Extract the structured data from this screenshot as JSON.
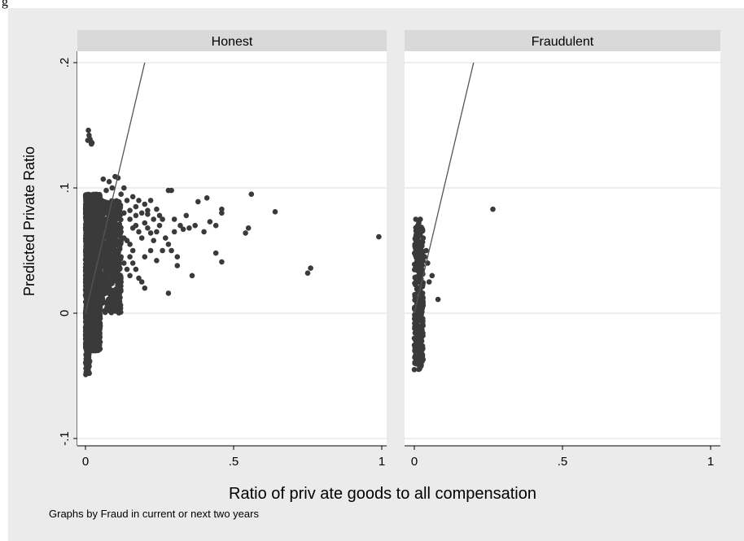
{
  "corner_text": "g",
  "chart_data": {
    "type": "scatter",
    "ylabel": "Predicted Private Ratio",
    "xlabel": "Ratio of priv ate goods to all compensation",
    "note": "Graphs by Fraud in current or next two years",
    "xlim": [
      0,
      1
    ],
    "ylim": [
      -0.1,
      0.2
    ],
    "x_ticks": [
      {
        "value": 0,
        "label": "0"
      },
      {
        "value": 0.5,
        "label": ".5"
      },
      {
        "value": 1,
        "label": "1"
      }
    ],
    "y_ticks": [
      {
        "value": -0.1,
        "label": "-.1"
      },
      {
        "value": 0,
        "label": "0"
      },
      {
        "value": 0.1,
        "label": ".1"
      },
      {
        "value": 0.2,
        "label": ".2"
      }
    ],
    "grid": true,
    "marker_color": "#3a3a3a",
    "reference_line": {
      "slope": 1,
      "intercept": 0
    },
    "panels": [
      {
        "title": "Honest",
        "points": [
          [
            0.01,
            0.146
          ],
          [
            0.012,
            0.142
          ],
          [
            0.015,
            0.139
          ],
          [
            0.018,
            0.137
          ],
          [
            0.02,
            0.135
          ],
          [
            0.008,
            0.138
          ],
          [
            0.022,
            0.136
          ],
          [
            0.06,
            0.107
          ],
          [
            0.08,
            0.105
          ],
          [
            0.1,
            0.109
          ],
          [
            0.11,
            0.108
          ],
          [
            0.09,
            0.1
          ],
          [
            0.07,
            0.098
          ],
          [
            0.12,
            0.095
          ],
          [
            0.02,
            0.09
          ],
          [
            0.03,
            0.085
          ],
          [
            0.04,
            0.08
          ],
          [
            0.05,
            0.075
          ],
          [
            0.06,
            0.07
          ],
          [
            0.07,
            0.068
          ],
          [
            0.08,
            0.065
          ],
          [
            0.09,
            0.06
          ],
          [
            0.1,
            0.055
          ],
          [
            0.11,
            0.05
          ],
          [
            0.12,
            0.045
          ],
          [
            0.13,
            0.04
          ],
          [
            0.14,
            0.035
          ],
          [
            0.15,
            0.03
          ],
          [
            0.03,
            0.06
          ],
          [
            0.04,
            0.055
          ],
          [
            0.05,
            0.05
          ],
          [
            0.06,
            0.045
          ],
          [
            0.07,
            0.04
          ],
          [
            0.08,
            0.035
          ],
          [
            0.09,
            0.03
          ],
          [
            0.1,
            0.075
          ],
          [
            0.11,
            0.07
          ],
          [
            0.12,
            0.065
          ],
          [
            0.13,
            0.06
          ],
          [
            0.14,
            0.058
          ],
          [
            0.15,
            0.055
          ],
          [
            0.16,
            0.05
          ],
          [
            0.17,
            0.07
          ],
          [
            0.18,
            0.065
          ],
          [
            0.19,
            0.06
          ],
          [
            0.2,
            0.072
          ],
          [
            0.21,
            0.068
          ],
          [
            0.22,
            0.064
          ],
          [
            0.23,
            0.058
          ],
          [
            0.14,
            0.09
          ],
          [
            0.16,
            0.093
          ],
          [
            0.18,
            0.09
          ],
          [
            0.2,
            0.087
          ],
          [
            0.22,
            0.09
          ],
          [
            0.24,
            0.083
          ],
          [
            0.25,
            0.078
          ],
          [
            0.13,
            0.08
          ],
          [
            0.15,
            0.082
          ],
          [
            0.17,
            0.078
          ],
          [
            0.19,
            0.08
          ],
          [
            0.21,
            0.079
          ],
          [
            0.23,
            0.075
          ],
          [
            0.16,
            0.068
          ],
          [
            0.15,
            0.045
          ],
          [
            0.16,
            0.04
          ],
          [
            0.17,
            0.035
          ],
          [
            0.18,
            0.028
          ],
          [
            0.19,
            0.025
          ],
          [
            0.2,
            0.02
          ],
          [
            0.11,
            0.02
          ],
          [
            0.12,
            0.025
          ],
          [
            0.1,
            0.015
          ],
          [
            0.09,
            0.01
          ],
          [
            0.03,
            0.02
          ],
          [
            0.02,
            0.01
          ],
          [
            0.04,
            0.015
          ],
          [
            0.05,
            0.025
          ],
          [
            0.28,
            0.098
          ],
          [
            0.29,
            0.098
          ],
          [
            0.26,
            0.075
          ],
          [
            0.3,
            0.075
          ],
          [
            0.3,
            0.065
          ],
          [
            0.32,
            0.07
          ],
          [
            0.34,
            0.078
          ],
          [
            0.35,
            0.068
          ],
          [
            0.33,
            0.067
          ],
          [
            0.37,
            0.07
          ],
          [
            0.4,
            0.065
          ],
          [
            0.42,
            0.073
          ],
          [
            0.38,
            0.089
          ],
          [
            0.41,
            0.092
          ],
          [
            0.46,
            0.08
          ],
          [
            0.46,
            0.083
          ],
          [
            0.44,
            0.07
          ],
          [
            0.28,
            0.055
          ],
          [
            0.29,
            0.05
          ],
          [
            0.31,
            0.045
          ],
          [
            0.31,
            0.038
          ],
          [
            0.36,
            0.03
          ],
          [
            0.28,
            0.016
          ],
          [
            0.44,
            0.048
          ],
          [
            0.46,
            0.041
          ],
          [
            0.54,
            0.064
          ],
          [
            0.55,
            0.068
          ],
          [
            0.56,
            0.095
          ],
          [
            0.64,
            0.081
          ],
          [
            0.75,
            0.032
          ],
          [
            0.76,
            0.036
          ],
          [
            0.99,
            0.061
          ],
          [
            0.05,
            -0.01
          ],
          [
            0.25,
            0.07
          ],
          [
            0.24,
            0.065
          ],
          [
            0.27,
            0.06
          ],
          [
            0.22,
            0.05
          ],
          [
            0.2,
            0.045
          ],
          [
            0.24,
            0.042
          ],
          [
            0.26,
            0.05
          ],
          [
            0.21,
            0.082
          ],
          [
            0.13,
            0.1
          ],
          [
            0.15,
            0.075
          ],
          [
            0.17,
            0.085
          ]
        ],
        "cluster": {
          "x": [
            0,
            0.05
          ],
          "y": [
            -0.03,
            0.095
          ],
          "count": 3500
        },
        "cluster2": {
          "x": [
            0,
            0.015
          ],
          "y": [
            -0.05,
            -0.02
          ],
          "count": 60
        },
        "cluster3": {
          "x": [
            0.03,
            0.12
          ],
          "y": [
            0.0,
            0.09
          ],
          "count": 700
        }
      },
      {
        "title": "Fraudulent",
        "points": [
          [
            0.0,
            -0.045
          ],
          [
            0.005,
            -0.04
          ],
          [
            0.003,
            -0.03
          ],
          [
            0.006,
            -0.035
          ],
          [
            0.0,
            -0.02
          ],
          [
            0.004,
            -0.025
          ],
          [
            0.02,
            0.075
          ],
          [
            0.015,
            0.072
          ],
          [
            0.005,
            0.075
          ],
          [
            0.03,
            0.06
          ],
          [
            0.025,
            0.055
          ],
          [
            0.04,
            0.05
          ],
          [
            0.035,
            0.045
          ],
          [
            0.045,
            0.04
          ],
          [
            0.05,
            0.025
          ],
          [
            0.06,
            0.03
          ],
          [
            0.08,
            0.011
          ],
          [
            0.265,
            0.083
          ],
          [
            0.02,
            0.01
          ],
          [
            0.015,
            0.0
          ],
          [
            0.01,
            0.01
          ]
        ],
        "cluster": {
          "x": [
            0,
            0.03
          ],
          "y": [
            -0.045,
            0.07
          ],
          "count": 300
        }
      }
    ]
  }
}
